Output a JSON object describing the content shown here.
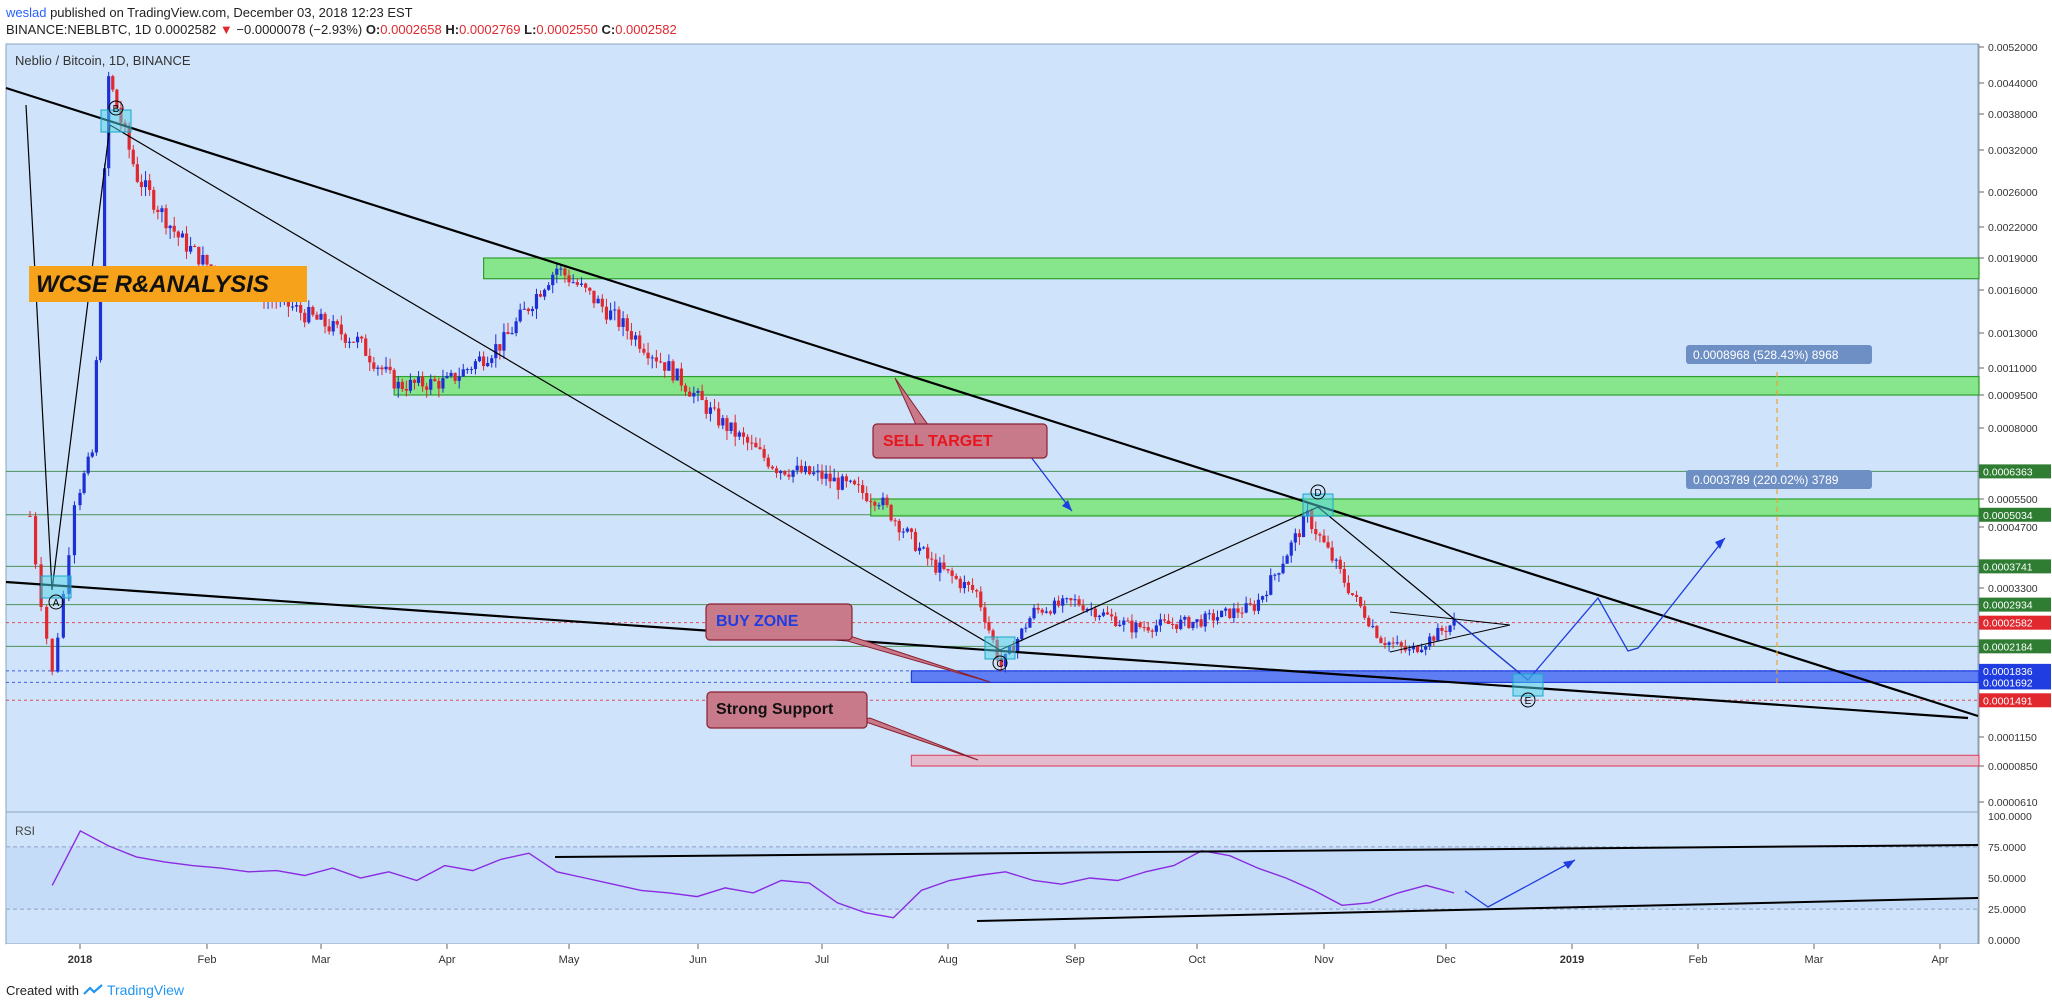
{
  "header": {
    "user": "weslad",
    "published": " published on TradingView.com, December 03, 2018 12:23 EST",
    "symbol": "BINANCE:NEBLBTC, 1D",
    "last": "0.0002582",
    "change": "−0.0000078 (−2.93%)",
    "ohlc_o": "0.0002658",
    "ohlc_h": "0.0002769",
    "ohlc_l": "0.0002550",
    "ohlc_c": "0.0002582",
    "label_o": "O:",
    "label_h": "H:",
    "label_l": "L:",
    "label_c": "C:"
  },
  "pane_title": "Neblio / Bitcoin, 1D, BINANCE",
  "rsi_title": "RSI",
  "footer": {
    "created": "Created with",
    "brand": "TradingView"
  },
  "colors": {
    "background": "#cfe4fb",
    "candle_up": "#1e2fd6",
    "candle_down": "#e0282e",
    "green_zone": "#7ee67e",
    "blue_zone": "#3b5cf0",
    "pink_zone": "#e6b6c8",
    "rsi_line": "#8a2be2"
  },
  "annotations": {
    "brand_box": "WCSE R&ANALYSIS",
    "sell_target": "SELL TARGET",
    "buy_zone": "BUY ZONE",
    "strong_support": "Strong Support",
    "measure_1": "0.0008968 (528.43%) 8968",
    "measure_2": "0.0003789 (220.02%) 3789",
    "points": [
      "A",
      "B",
      "C",
      "D",
      "E"
    ]
  },
  "chart_data": {
    "type": "candlestick",
    "title": "Neblio / Bitcoin, 1D, BINANCE",
    "y_scale": "log",
    "x_ticks": [
      "2018",
      "Feb",
      "Mar",
      "Apr",
      "May",
      "Jun",
      "Jul",
      "Aug",
      "Sep",
      "Oct",
      "Nov",
      "Dec",
      "2019",
      "Feb",
      "Mar",
      "Apr"
    ],
    "y_ticks": [
      "0.0052000",
      "0.0044000",
      "0.0038000",
      "0.0032000",
      "0.0026000",
      "0.0022000",
      "0.0019000",
      "0.0016000",
      "0.0013000",
      "0.0011000",
      "0.0009500",
      "0.0008000",
      "0.0005500",
      "0.0004700",
      "0.0003300",
      "0.0001150",
      "0.0000850",
      "0.0000610"
    ],
    "price_badges": [
      {
        "value": "0.0006363",
        "color": "#2e7d32"
      },
      {
        "value": "0.0005034",
        "color": "#2e7d32"
      },
      {
        "value": "0.0003741",
        "color": "#2e7d32"
      },
      {
        "value": "0.0002934",
        "color": "#2e7d32"
      },
      {
        "value": "0.0002582",
        "color": "#e0282e"
      },
      {
        "value": "0.0002184",
        "color": "#2e7d32"
      },
      {
        "value": "0.0001836",
        "color": "#1f3de0"
      },
      {
        "value": "0.0001692",
        "color": "#1f3de0"
      },
      {
        "value": "0.0001491",
        "color": "#e0282e"
      }
    ],
    "series": [
      {
        "name": "close",
        "x": [
          "2017-12-23",
          "2017-12-27",
          "2017-12-31",
          "2018-01-04",
          "2018-01-08",
          "2018-01-15",
          "2018-01-25",
          "2018-02-05",
          "2018-02-20",
          "2018-03-10",
          "2018-03-20",
          "2018-04-01",
          "2018-04-15",
          "2018-04-28",
          "2018-05-10",
          "2018-05-25",
          "2018-06-05",
          "2018-06-20",
          "2018-07-01",
          "2018-07-15",
          "2018-07-28",
          "2018-08-08",
          "2018-08-14",
          "2018-08-22",
          "2018-09-01",
          "2018-09-15",
          "2018-10-01",
          "2018-10-15",
          "2018-10-28",
          "2018-11-05",
          "2018-11-15",
          "2018-11-22",
          "2018-12-03"
        ],
        "y": [
          0.0005,
          0.00018,
          0.00055,
          0.0007,
          0.0045,
          0.0028,
          0.0021,
          0.0017,
          0.0015,
          0.00125,
          0.001,
          0.00102,
          0.00125,
          0.0018,
          0.00145,
          0.0011,
          0.00085,
          0.00065,
          0.00062,
          0.00055,
          0.00038,
          0.00032,
          0.00019,
          0.00028,
          0.0003,
          0.00025,
          0.00026,
          0.00029,
          0.0005,
          0.00036,
          0.00023,
          0.00021,
          0.0002582
        ]
      }
    ],
    "zones": [
      {
        "name": "",
        "from": 0.0017,
        "to": 0.0019,
        "color": "green"
      },
      {
        "name": "",
        "from": 0.00095,
        "to": 0.00105,
        "color": "green"
      },
      {
        "name": "",
        "from": 0.0005,
        "to": 0.00055,
        "color": "green"
      },
      {
        "name": "BUY ZONE",
        "from": 0.0001692,
        "to": 0.0001836,
        "color": "blue"
      },
      {
        "name": "Strong Support",
        "from": 8.5e-05,
        "to": 9.5e-05,
        "color": "pink"
      }
    ],
    "rsi": {
      "y_ticks": [
        "100.0000",
        "75.0000",
        "50.0000",
        "25.0000",
        "0.0000"
      ],
      "values": [
        44,
        88,
        76,
        67,
        63,
        60,
        58,
        55,
        56,
        52,
        58,
        50,
        55,
        48,
        60,
        56,
        65,
        70,
        55,
        50,
        45,
        40,
        38,
        35,
        42,
        38,
        48,
        46,
        30,
        22,
        18,
        40,
        48,
        52,
        55,
        48,
        45,
        50,
        48,
        55,
        60,
        72,
        68,
        58,
        50,
        40,
        28,
        30,
        38,
        44,
        38
      ]
    }
  }
}
